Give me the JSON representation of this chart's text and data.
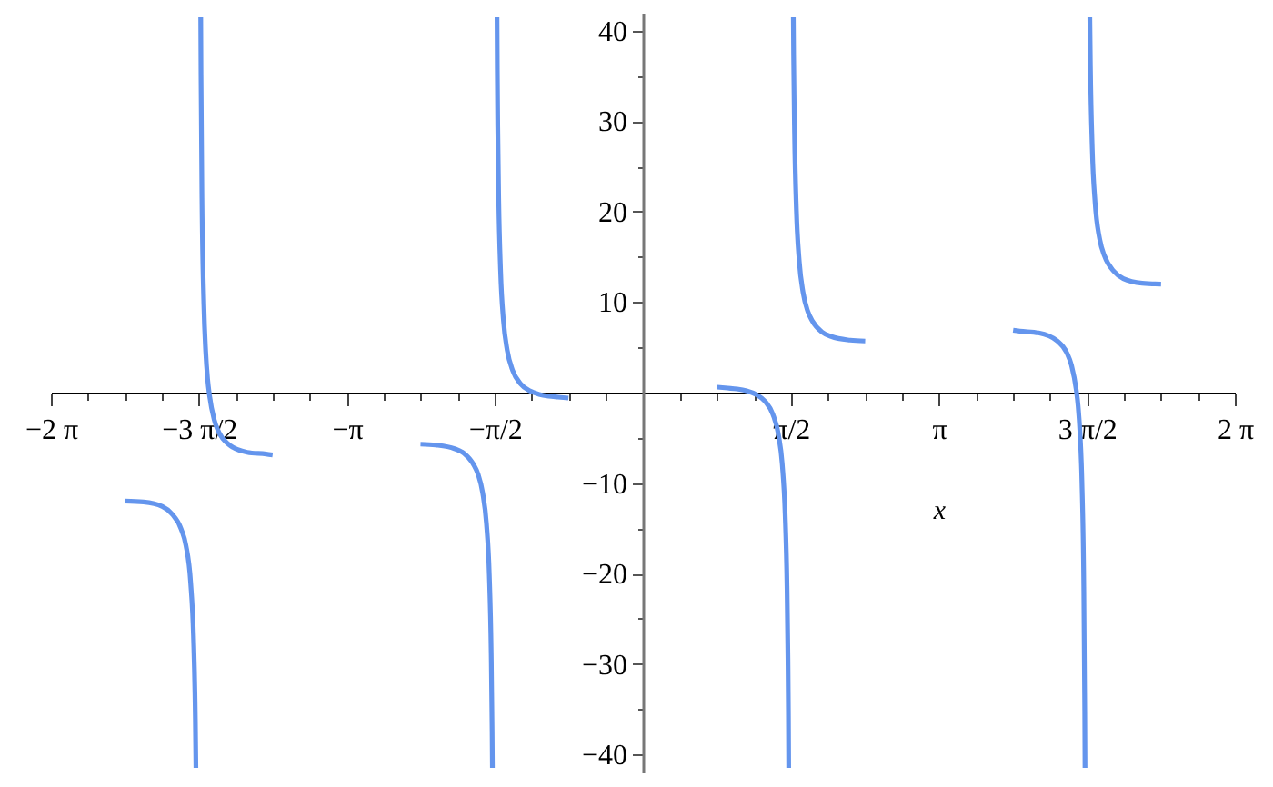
{
  "chart_data": {
    "type": "line",
    "xlabel": "x",
    "color": "#6495ed",
    "x": [
      -5.5,
      -5.3,
      -5.1,
      -5.0,
      -4.9,
      -4.85,
      -4.8,
      -4.77,
      -4.75,
      -4.744,
      -4.71,
      -4.693,
      -4.69,
      -4.68,
      -4.66,
      -4.64,
      -4.62,
      -4.6,
      -4.55,
      -4.5,
      -4.4,
      -4.2,
      -4.0,
      -3.93,
      -3.14,
      -2.36,
      -2.2,
      -2.0,
      -1.9,
      -1.8,
      -1.75,
      -1.7,
      -1.66,
      -1.63,
      -1.61,
      -1.6,
      -1.597,
      -1.57,
      -1.548,
      -1.545,
      -1.54,
      -1.53,
      -1.51,
      -1.48,
      -1.44,
      -1.38,
      -1.3,
      -1.2,
      -1.1,
      -1.0,
      -0.9,
      -0.79,
      0,
      0.79,
      0.9,
      1.0,
      1.1,
      1.2,
      1.3,
      1.38,
      1.44,
      1.48,
      1.51,
      1.53,
      1.54,
      1.545,
      1.548,
      1.57,
      1.597,
      1.6,
      1.61,
      1.63,
      1.66,
      1.7,
      1.75,
      1.8,
      1.9,
      2.0,
      2.2,
      2.36,
      3.14,
      3.93,
      4.0,
      4.2,
      4.4,
      4.5,
      4.55,
      4.6,
      4.62,
      4.64,
      4.66,
      4.68,
      4.69,
      4.693,
      4.71,
      4.744,
      4.75,
      4.77,
      4.8,
      4.85,
      4.9,
      5.0,
      5.1,
      5.3,
      5.5
    ],
    "values": [
      -12.0,
      -12.1,
      -12.6,
      -13.4,
      -15.1,
      -16.9,
      -21.0,
      -26.9,
      -36.1,
      -41.5,
      null,
      41.5,
      35.2,
      21.5,
      9.8,
      4.5,
      1.5,
      -0.3,
      -3.0,
      -4.4,
      -5.7,
      -6.6,
      -6.8,
      -6.9,
      null,
      -5.7,
      -5.8,
      -6.2,
      -6.7,
      -7.9,
      -9.0,
      -11.1,
      -14.5,
      -20.1,
      -28.7,
      -37.4,
      -41.5,
      null,
      41.5,
      35.7,
      29.4,
      21.4,
      13.4,
      8.0,
      4.7,
      2.4,
      1.0,
      0.2,
      -0.2,
      -0.4,
      -0.5,
      -0.6,
      null,
      0.6,
      0.5,
      0.4,
      0.2,
      -0.2,
      -1.0,
      -2.4,
      -4.7,
      -8.0,
      -13.4,
      -21.4,
      -29.4,
      -35.7,
      -41.5,
      null,
      41.5,
      37.4,
      28.7,
      20.1,
      14.5,
      11.1,
      9.0,
      7.9,
      6.7,
      6.2,
      5.8,
      5.7,
      null,
      6.9,
      6.8,
      6.6,
      5.7,
      4.4,
      3.0,
      0.3,
      -1.5,
      -4.5,
      -9.8,
      -21.5,
      -35.2,
      -41.5,
      null,
      41.5,
      36.1,
      26.9,
      21.0,
      16.9,
      15.1,
      13.4,
      12.6,
      12.1,
      12.0
    ],
    "xlim": [
      -6.2832,
      6.2832
    ],
    "ylim": [
      -42,
      42
    ],
    "xticks": [
      {
        "value": -6.2832,
        "label": "−2 π"
      },
      {
        "value": -5.8905,
        "label": null
      },
      {
        "value": -5.4978,
        "label": null
      },
      {
        "value": -5.1051,
        "label": null
      },
      {
        "value": -4.7124,
        "label": "−3 π/2"
      },
      {
        "value": -4.3197,
        "label": null
      },
      {
        "value": -3.927,
        "label": null
      },
      {
        "value": -3.5343,
        "label": null
      },
      {
        "value": -3.1416,
        "label": "−π"
      },
      {
        "value": -2.7489,
        "label": null
      },
      {
        "value": -2.3562,
        "label": null
      },
      {
        "value": -1.9635,
        "label": null
      },
      {
        "value": -1.5708,
        "label": "−π/2"
      },
      {
        "value": -1.1781,
        "label": null
      },
      {
        "value": -0.7854,
        "label": null
      },
      {
        "value": -0.3927,
        "label": null
      },
      {
        "value": 0.3927,
        "label": null
      },
      {
        "value": 0.7854,
        "label": null
      },
      {
        "value": 1.1781,
        "label": null
      },
      {
        "value": 1.5708,
        "label": "π/2"
      },
      {
        "value": 1.9635,
        "label": null
      },
      {
        "value": 2.3562,
        "label": null
      },
      {
        "value": 2.7489,
        "label": null
      },
      {
        "value": 3.1416,
        "label": "π"
      },
      {
        "value": 3.5343,
        "label": null
      },
      {
        "value": 3.927,
        "label": null
      },
      {
        "value": 4.3197,
        "label": null
      },
      {
        "value": 4.7124,
        "label": "3 π/2"
      },
      {
        "value": 5.1051,
        "label": null
      },
      {
        "value": 5.4978,
        "label": null
      },
      {
        "value": 5.8905,
        "label": null
      },
      {
        "value": 6.2832,
        "label": "2 π"
      }
    ],
    "yticks": [
      -40,
      {
        "value": -35,
        "label": null
      },
      -30,
      {
        "value": -25,
        "label": null
      },
      -20,
      {
        "value": -15,
        "label": null
      },
      -10,
      {
        "value": -5,
        "label": null
      },
      {
        "value": 5,
        "label": null
      },
      10,
      {
        "value": 15,
        "label": null
      },
      20,
      {
        "value": 25,
        "label": null
      },
      30,
      {
        "value": 35,
        "label": null
      },
      40
    ]
  }
}
